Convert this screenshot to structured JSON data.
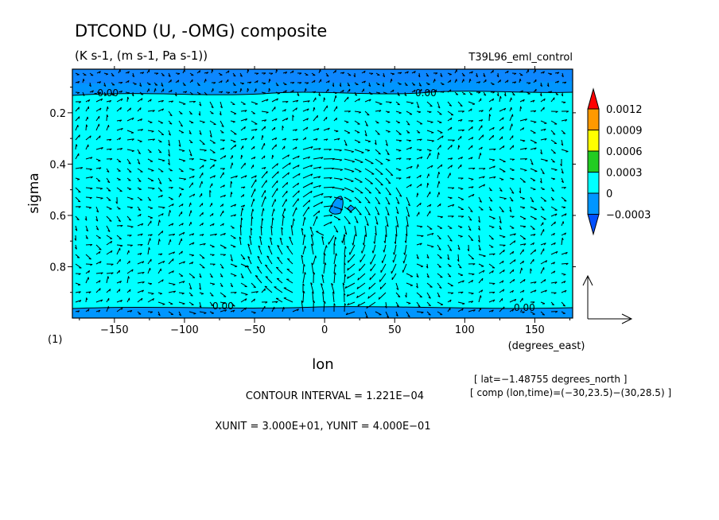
{
  "chart_data": {
    "type": "heatmap",
    "title": "DTCOND (U, -OMG) composite",
    "subtitle": "(K s-1, (m s-1, Pa s-1))",
    "run_name": "T39L96_eml_control",
    "xlabel": "lon",
    "ylabel": "sigma",
    "x_units": "(degrees_east)",
    "xlim": [
      -180,
      177
    ],
    "ylim": [
      1.0,
      0.03
    ],
    "x_ticks": [
      -150,
      -100,
      -50,
      0,
      50,
      100,
      150
    ],
    "x_tick_labels": [
      "−150",
      "−100",
      "−50",
      "0",
      "50",
      "100",
      "150"
    ],
    "y_ticks": [
      0.2,
      0.4,
      0.6,
      0.8
    ],
    "y_tick_labels": [
      "0.2",
      "0.4",
      "0.6",
      "0.8"
    ],
    "panel_label": "(1)",
    "colorbar": {
      "levels": [
        "0.0012",
        "0.0009",
        "0.0006",
        "0.0003",
        "0",
        "−0.0003"
      ],
      "colors": [
        "#ff0000",
        "#ff9900",
        "#ffff00",
        "#22cc22",
        "#00ffff",
        "#0096ff",
        "#0050ff"
      ]
    },
    "contour_labels": [
      "-0.00",
      "0.00",
      "0.00",
      "0.00"
    ],
    "info_lat": "[ lat=−1.48755 degrees_north ]",
    "info_comp": "[ comp (lon,time)=(−30,23.5)−(30,28.5) ]",
    "contour_interval": "CONTOUR INTERVAL = 1.221E−04",
    "units_line": "XUNIT = 3.000E+01, YUNIT = 4.000E−01"
  }
}
